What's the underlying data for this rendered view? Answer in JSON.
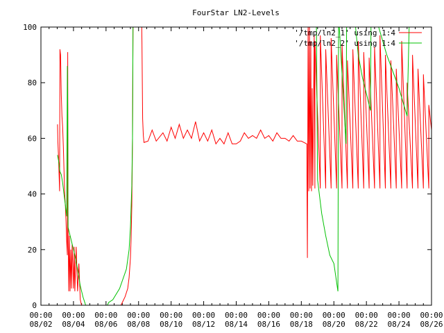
{
  "chart_data": {
    "type": "line",
    "title": "FourStar LN2-Levels",
    "xlabel": "",
    "ylabel": "",
    "x_axis": "date",
    "xlim": [
      "08/02 00:00",
      "08/26 00:00"
    ],
    "ylim": [
      0,
      100
    ],
    "grid": false,
    "legend_placement": "top-right",
    "x_ticks": [
      "08/02",
      "08/04",
      "08/06",
      "08/08",
      "08/10",
      "08/12",
      "08/14",
      "08/16",
      "08/18",
      "08/20",
      "08/22",
      "08/24",
      "08/26"
    ],
    "x_tick_time": "00:00",
    "y_ticks": [
      0,
      20,
      40,
      60,
      80,
      100
    ],
    "series": [
      {
        "name": "'/tmp/ln2_1' using 1:4",
        "color": "#ff0000",
        "points": [
          [
            "08/03 00:30",
            65
          ],
          [
            "08/03 01:00",
            59
          ],
          [
            "08/03 02:00",
            53
          ],
          [
            "08/03 03:00",
            45
          ],
          [
            "08/03 03:30",
            41
          ],
          [
            "08/03 04:00",
            92
          ],
          [
            "08/03 05:00",
            90
          ],
          [
            "08/03 06:00",
            76
          ],
          [
            "08/03 07:00",
            68
          ],
          [
            "08/03 08:00",
            64
          ],
          [
            "08/03 09:00",
            57
          ],
          [
            "08/03 10:00",
            49
          ],
          [
            "08/03 11:00",
            40
          ],
          [
            "08/03 12:00",
            36
          ],
          [
            "08/03 13:00",
            30
          ],
          [
            "08/03 14:00",
            23
          ],
          [
            "08/03 15:00",
            18
          ],
          [
            "08/03 15:30",
            91
          ],
          [
            "08/03 16:00",
            28
          ],
          [
            "08/03 17:00",
            5
          ],
          [
            "08/03 18:00",
            25
          ],
          [
            "08/03 19:00",
            5
          ],
          [
            "08/03 20:00",
            20
          ],
          [
            "08/03 21:00",
            6
          ],
          [
            "08/03 22:00",
            22
          ],
          [
            "08/04 00:00",
            6
          ],
          [
            "08/04 01:00",
            21
          ],
          [
            "08/04 02:00",
            5
          ],
          [
            "08/04 04:00",
            21
          ],
          [
            "08/04 06:00",
            5
          ],
          [
            "08/04 08:00",
            15
          ],
          [
            "08/04 10:00",
            2
          ],
          [
            "08/04 12:00",
            0
          ],
          [
            "08/06 22:00",
            0
          ],
          [
            "08/07 00:00",
            1
          ],
          [
            "08/07 04:00",
            3
          ],
          [
            "08/07 08:00",
            6
          ],
          [
            "08/07 10:00",
            10
          ],
          [
            "08/07 12:00",
            17
          ],
          [
            "08/07 13:00",
            24
          ],
          [
            "08/07 14:00",
            36
          ],
          [
            "08/07 15:00",
            60
          ],
          [
            "08/07 16:00",
            110
          ],
          [
            "08/08 04:00",
            110
          ],
          [
            "08/08 05:00",
            95
          ],
          [
            "08/08 06:00",
            67
          ],
          [
            "08/08 07:00",
            61
          ],
          [
            "08/08 08:00",
            58.5
          ],
          [
            "08/08 14:00",
            59
          ],
          [
            "08/08 20:00",
            63
          ],
          [
            "08/09 02:00",
            59
          ],
          [
            "08/09 12:00",
            62
          ],
          [
            "08/09 18:00",
            59
          ],
          [
            "08/10 00:00",
            64
          ],
          [
            "08/10 06:00",
            60
          ],
          [
            "08/10 12:00",
            65
          ],
          [
            "08/10 18:00",
            60
          ],
          [
            "08/11 00:00",
            63
          ],
          [
            "08/11 06:00",
            60
          ],
          [
            "08/11 12:00",
            66
          ],
          [
            "08/11 18:00",
            59
          ],
          [
            "08/12 00:00",
            62
          ],
          [
            "08/12 06:00",
            59
          ],
          [
            "08/12 12:00",
            63
          ],
          [
            "08/12 18:00",
            58
          ],
          [
            "08/13 00:00",
            60
          ],
          [
            "08/13 06:00",
            58
          ],
          [
            "08/13 12:00",
            62
          ],
          [
            "08/13 18:00",
            58
          ],
          [
            "08/14 00:00",
            58
          ],
          [
            "08/14 06:00",
            59
          ],
          [
            "08/14 12:00",
            62
          ],
          [
            "08/14 18:00",
            60
          ],
          [
            "08/15 00:00",
            61
          ],
          [
            "08/15 06:00",
            60
          ],
          [
            "08/15 12:00",
            63
          ],
          [
            "08/15 18:00",
            60
          ],
          [
            "08/16 00:00",
            61
          ],
          [
            "08/16 06:00",
            59
          ],
          [
            "08/16 12:00",
            62
          ],
          [
            "08/16 18:00",
            60
          ],
          [
            "08/17 00:00",
            60
          ],
          [
            "08/17 06:00",
            59
          ],
          [
            "08/17 12:00",
            61
          ],
          [
            "08/17 18:00",
            59
          ],
          [
            "08/18 00:00",
            59
          ],
          [
            "08/18 08:00",
            58
          ],
          [
            "08/18 09:00",
            17
          ],
          [
            "08/18 10:00",
            100
          ],
          [
            "08/18 11:00",
            41
          ],
          [
            "08/18 12:00",
            100
          ],
          [
            "08/18 13:00",
            42
          ],
          [
            "08/18 14:00",
            95
          ],
          [
            "08/18 15:00",
            41
          ],
          [
            "08/18 16:00",
            78
          ],
          [
            "08/18 17:00",
            43
          ],
          [
            "08/18 19:00",
            97
          ],
          [
            "08/18 20:00",
            42
          ],
          [
            "08/18 20:00",
            95
          ],
          [
            "08/19 04:00",
            42
          ],
          [
            "08/19 04:00",
            97
          ],
          [
            "08/19 12:00",
            42
          ],
          [
            "08/19 12:00",
            92
          ],
          [
            "08/19 20:00",
            42
          ],
          [
            "08/19 20:00",
            96
          ],
          [
            "08/20 04:00",
            42
          ],
          [
            "08/20 04:00",
            90
          ],
          [
            "08/20 12:00",
            42
          ],
          [
            "08/20 12:00",
            94
          ],
          [
            "08/20 20:00",
            42
          ],
          [
            "08/20 20:00",
            88
          ],
          [
            "08/21 04:00",
            42
          ],
          [
            "08/21 04:00",
            92
          ],
          [
            "08/21 12:00",
            42
          ],
          [
            "08/21 12:00",
            95
          ],
          [
            "08/21 20:00",
            42
          ],
          [
            "08/21 20:00",
            91
          ],
          [
            "08/22 04:00",
            42
          ],
          [
            "08/22 04:00",
            89
          ],
          [
            "08/22 12:00",
            42
          ],
          [
            "08/22 12:00",
            93
          ],
          [
            "08/22 20:00",
            42
          ],
          [
            "08/22 20:00",
            97
          ],
          [
            "08/23 04:00",
            42
          ],
          [
            "08/23 04:00",
            90
          ],
          [
            "08/23 12:00",
            42
          ],
          [
            "08/23 12:00",
            88
          ],
          [
            "08/23 20:00",
            42
          ],
          [
            "08/23 20:00",
            85
          ],
          [
            "08/24 04:00",
            42
          ],
          [
            "08/24 04:00",
            95
          ],
          [
            "08/24 12:00",
            42
          ],
          [
            "08/24 12:00",
            80
          ],
          [
            "08/24 20:00",
            42
          ],
          [
            "08/24 20:00",
            90
          ],
          [
            "08/25 04:00",
            42
          ],
          [
            "08/25 04:00",
            85
          ],
          [
            "08/25 12:00",
            42
          ],
          [
            "08/25 12:00",
            83
          ],
          [
            "08/25 20:00",
            42
          ],
          [
            "08/25 20:00",
            72
          ],
          [
            "08/26 00:00",
            63
          ]
        ]
      },
      {
        "name": "'/tmp/ln2_2' using 1:4",
        "color": "#00c000",
        "points": [
          [
            "08/03 00:30",
            54
          ],
          [
            "08/03 02:00",
            52
          ],
          [
            "08/03 04:00",
            48
          ],
          [
            "08/03 06:00",
            47
          ],
          [
            "08/03 08:00",
            44
          ],
          [
            "08/03 10:00",
            40
          ],
          [
            "08/03 12:00",
            36
          ],
          [
            "08/03 14:00",
            32
          ],
          [
            "08/03 15:00",
            86
          ],
          [
            "08/03 15:30",
            71
          ],
          [
            "08/03 16:00",
            28
          ],
          [
            "08/03 18:00",
            26
          ],
          [
            "08/03 22:00",
            22
          ],
          [
            "08/04 02:00",
            18
          ],
          [
            "08/04 06:00",
            13
          ],
          [
            "08/04 10:00",
            7
          ],
          [
            "08/04 14:00",
            3
          ],
          [
            "08/04 18:00",
            0
          ],
          [
            "08/06 02:00",
            0
          ],
          [
            "08/06 04:00",
            1
          ],
          [
            "08/06 10:00",
            2
          ],
          [
            "08/06 20:00",
            6
          ],
          [
            "08/07 06:00",
            13
          ],
          [
            "08/07 10:00",
            20
          ],
          [
            "08/07 12:00",
            28
          ],
          [
            "08/07 14:00",
            43
          ],
          [
            "08/07 15:00",
            60
          ],
          [
            "08/07 16:00",
            110
          ],
          [
            "08/18 22:00",
            110
          ],
          [
            "08/19 00:00",
            45
          ],
          [
            "08/19 06:00",
            33
          ],
          [
            "08/19 12:00",
            25
          ],
          [
            "08/19 18:00",
            18
          ],
          [
            "08/20 00:00",
            15
          ],
          [
            "08/20 06:00",
            5
          ],
          [
            "08/20 07:00",
            110
          ],
          [
            "08/20 08:00",
            100
          ],
          [
            "08/20 18:00",
            58
          ],
          [
            "08/20 19:00",
            110
          ],
          [
            "08/21 08:00",
            100
          ],
          [
            "08/21 12:00",
            90
          ],
          [
            "08/21 18:00",
            82
          ],
          [
            "08/22 00:00",
            76
          ],
          [
            "08/22 06:00",
            70
          ],
          [
            "08/22 07:00",
            110
          ],
          [
            "08/22 18:00",
            100
          ],
          [
            "08/23 06:00",
            90
          ],
          [
            "08/24 00:00",
            78
          ],
          [
            "08/24 12:00",
            68
          ],
          [
            "08/24 16:00",
            110
          ]
        ]
      }
    ]
  }
}
